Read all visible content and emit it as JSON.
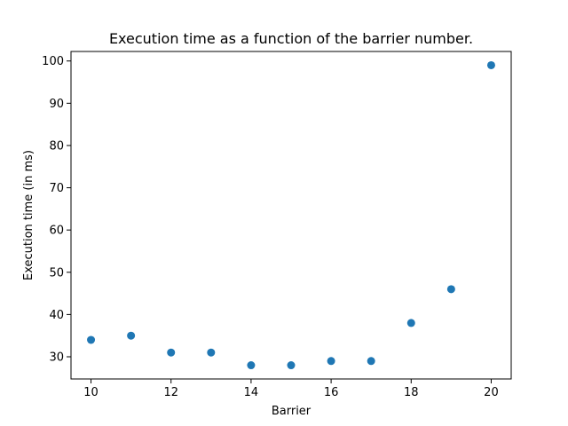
{
  "chart_data": {
    "type": "scatter",
    "title": "Execution time as a function of the barrier number.",
    "xlabel": "Barrier",
    "ylabel": "Execution time (in ms)",
    "xlim": [
      9.5,
      20.5
    ],
    "ylim": [
      24.75,
      102.25
    ],
    "x_ticks": [
      10,
      12,
      14,
      16,
      18,
      20
    ],
    "y_ticks": [
      30,
      40,
      50,
      60,
      70,
      80,
      90,
      100
    ],
    "grid": false,
    "marker_color": "#1f77b4",
    "points": [
      {
        "x": 10,
        "y": 34
      },
      {
        "x": 11,
        "y": 35
      },
      {
        "x": 12,
        "y": 31
      },
      {
        "x": 13,
        "y": 31
      },
      {
        "x": 14,
        "y": 28
      },
      {
        "x": 15,
        "y": 28
      },
      {
        "x": 16,
        "y": 29
      },
      {
        "x": 17,
        "y": 29
      },
      {
        "x": 18,
        "y": 38
      },
      {
        "x": 19,
        "y": 46
      },
      {
        "x": 20,
        "y": 99
      }
    ]
  }
}
